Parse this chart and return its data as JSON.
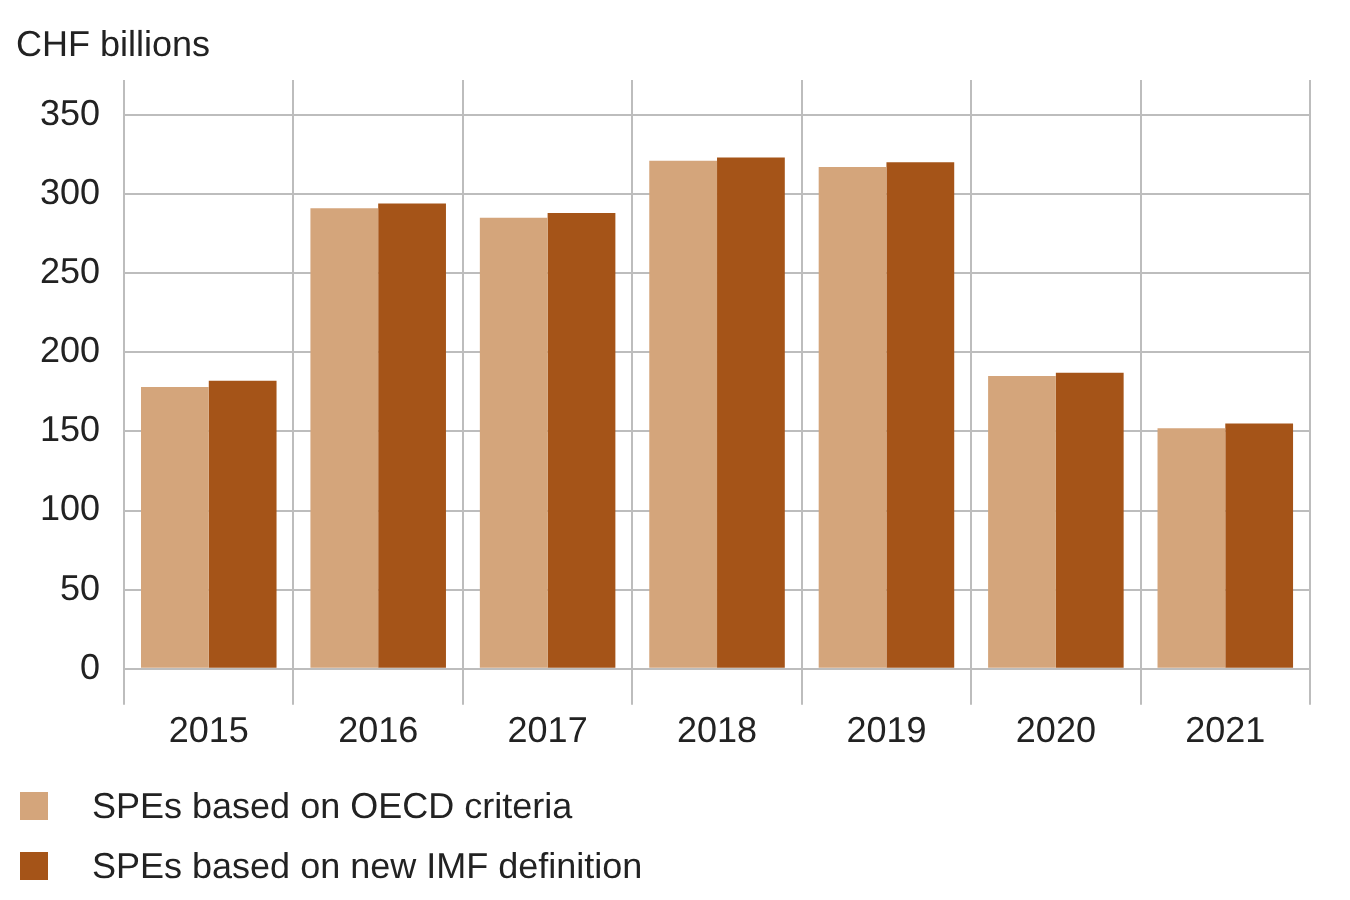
{
  "chart_data": {
    "type": "bar",
    "ylabel": "CHF billions",
    "categories": [
      "2015",
      "2016",
      "2017",
      "2018",
      "2019",
      "2020",
      "2021"
    ],
    "series": [
      {
        "name": "SPEs based on OECD criteria",
        "color": "#d4a57b",
        "values": [
          178,
          291,
          285,
          321,
          317,
          185,
          152
        ]
      },
      {
        "name": "SPEs based on new IMF definition",
        "color": "#a55418",
        "values": [
          182,
          294,
          288,
          323,
          320,
          187,
          155
        ]
      }
    ],
    "ylim": [
      0,
      372
    ],
    "yticks": [
      0,
      50,
      100,
      150,
      200,
      250,
      300,
      350
    ],
    "grid": true,
    "legend": "bottom"
  }
}
